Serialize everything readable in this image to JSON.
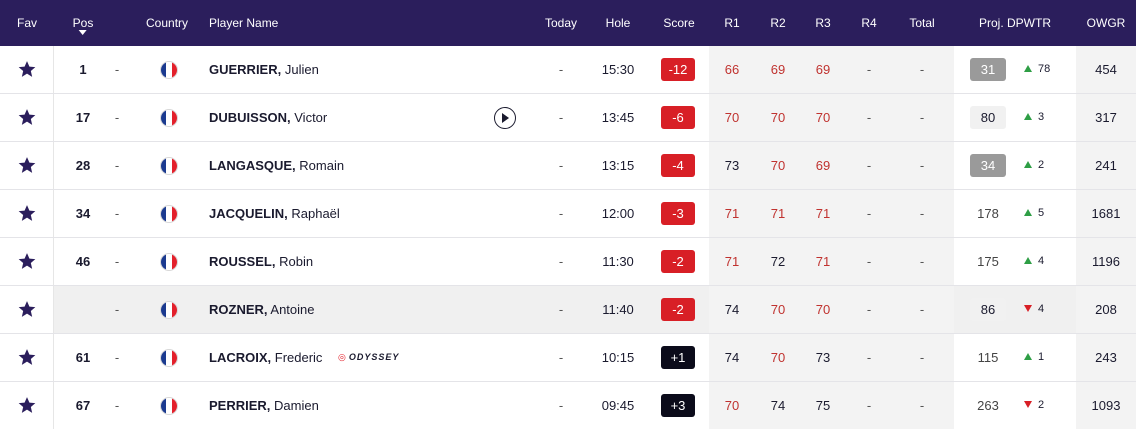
{
  "header": {
    "fav": "Fav",
    "pos": "Pos",
    "country": "Country",
    "player_name": "Player Name",
    "today": "Today",
    "hole": "Hole",
    "score": "Score",
    "r1": "R1",
    "r2": "R2",
    "r3": "R3",
    "r4": "R4",
    "total": "Total",
    "proj_dpwtr": "Proj. DPWTR",
    "owgr": "OWGR"
  },
  "colors": {
    "header_bg": "#2b1e5c",
    "under_par": "#d81f26",
    "over_par": "#0b0b1a",
    "round_red": "#c0322f",
    "move_up": "#2e9e45",
    "move_down": "#d81f26"
  },
  "rows": [
    {
      "pos": "1",
      "pos_move": "-",
      "country_flag": "France",
      "last_name": "GUERRIER,",
      "first_name": "Julien",
      "today": "-",
      "hole": "15:30",
      "score": "-12",
      "score_type": "under",
      "r1": "66",
      "r2": "69",
      "r3": "69",
      "r4": "-",
      "total": "-",
      "proj": "31",
      "proj_style": "highlight",
      "move_dir": "up",
      "move": "78",
      "owgr": "454",
      "shaded": false
    },
    {
      "pos": "17",
      "pos_move": "-",
      "country_flag": "France",
      "last_name": "DUBUISSON,",
      "first_name": "Victor",
      "has_video": true,
      "today": "-",
      "hole": "13:45",
      "score": "-6",
      "score_type": "under",
      "r1": "70",
      "r2": "70",
      "r3": "70",
      "r4": "-",
      "total": "-",
      "proj": "80",
      "proj_style": "light",
      "move_dir": "up",
      "move": "3",
      "owgr": "317",
      "shaded": false
    },
    {
      "pos": "28",
      "pos_move": "-",
      "country_flag": "France",
      "last_name": "LANGASQUE,",
      "first_name": "Romain",
      "today": "-",
      "hole": "13:15",
      "score": "-4",
      "score_type": "under",
      "r1": "73",
      "r2": "70",
      "r3": "69",
      "r4": "-",
      "total": "-",
      "proj": "34",
      "proj_style": "highlight",
      "move_dir": "up",
      "move": "2",
      "owgr": "241",
      "shaded": false
    },
    {
      "pos": "34",
      "pos_move": "-",
      "country_flag": "France",
      "last_name": "JACQUELIN,",
      "first_name": "Raphaël",
      "today": "-",
      "hole": "12:00",
      "score": "-3",
      "score_type": "under",
      "r1": "71",
      "r2": "71",
      "r3": "71",
      "r4": "-",
      "total": "-",
      "proj": "178",
      "proj_style": "plain",
      "move_dir": "up",
      "move": "5",
      "owgr": "1681",
      "shaded": false
    },
    {
      "pos": "46",
      "pos_move": "-",
      "country_flag": "France",
      "last_name": "ROUSSEL,",
      "first_name": "Robin",
      "today": "-",
      "hole": "11:30",
      "score": "-2",
      "score_type": "under",
      "r1": "71",
      "r2": "72",
      "r3": "71",
      "r4": "-",
      "total": "-",
      "proj": "175",
      "proj_style": "plain",
      "move_dir": "up",
      "move": "4",
      "owgr": "1196",
      "shaded": false
    },
    {
      "pos": "",
      "pos_move": "-",
      "country_flag": "France",
      "last_name": "ROZNER,",
      "first_name": "Antoine",
      "today": "-",
      "hole": "11:40",
      "score": "-2",
      "score_type": "under",
      "r1": "74",
      "r2": "70",
      "r3": "70",
      "r4": "-",
      "total": "-",
      "proj": "86",
      "proj_style": "light",
      "move_dir": "down",
      "move": "4",
      "owgr": "208",
      "shaded": true
    },
    {
      "pos": "61",
      "pos_move": "-",
      "country_flag": "France",
      "last_name": "LACROIX,",
      "first_name": "Frederic",
      "sponsor": "ODYSSEY",
      "today": "-",
      "hole": "10:15",
      "score": "+1",
      "score_type": "over",
      "r1": "74",
      "r2": "70",
      "r3": "73",
      "r4": "-",
      "total": "-",
      "proj": "115",
      "proj_style": "plain",
      "move_dir": "up",
      "move": "1",
      "owgr": "243",
      "shaded": false
    },
    {
      "pos": "67",
      "pos_move": "-",
      "country_flag": "France",
      "last_name": "PERRIER,",
      "first_name": "Damien",
      "today": "-",
      "hole": "09:45",
      "score": "+3",
      "score_type": "over",
      "r1": "70",
      "r2": "74",
      "r3": "75",
      "r4": "-",
      "total": "-",
      "proj": "263",
      "proj_style": "plain",
      "move_dir": "down",
      "move": "2",
      "owgr": "1093",
      "shaded": false
    }
  ]
}
